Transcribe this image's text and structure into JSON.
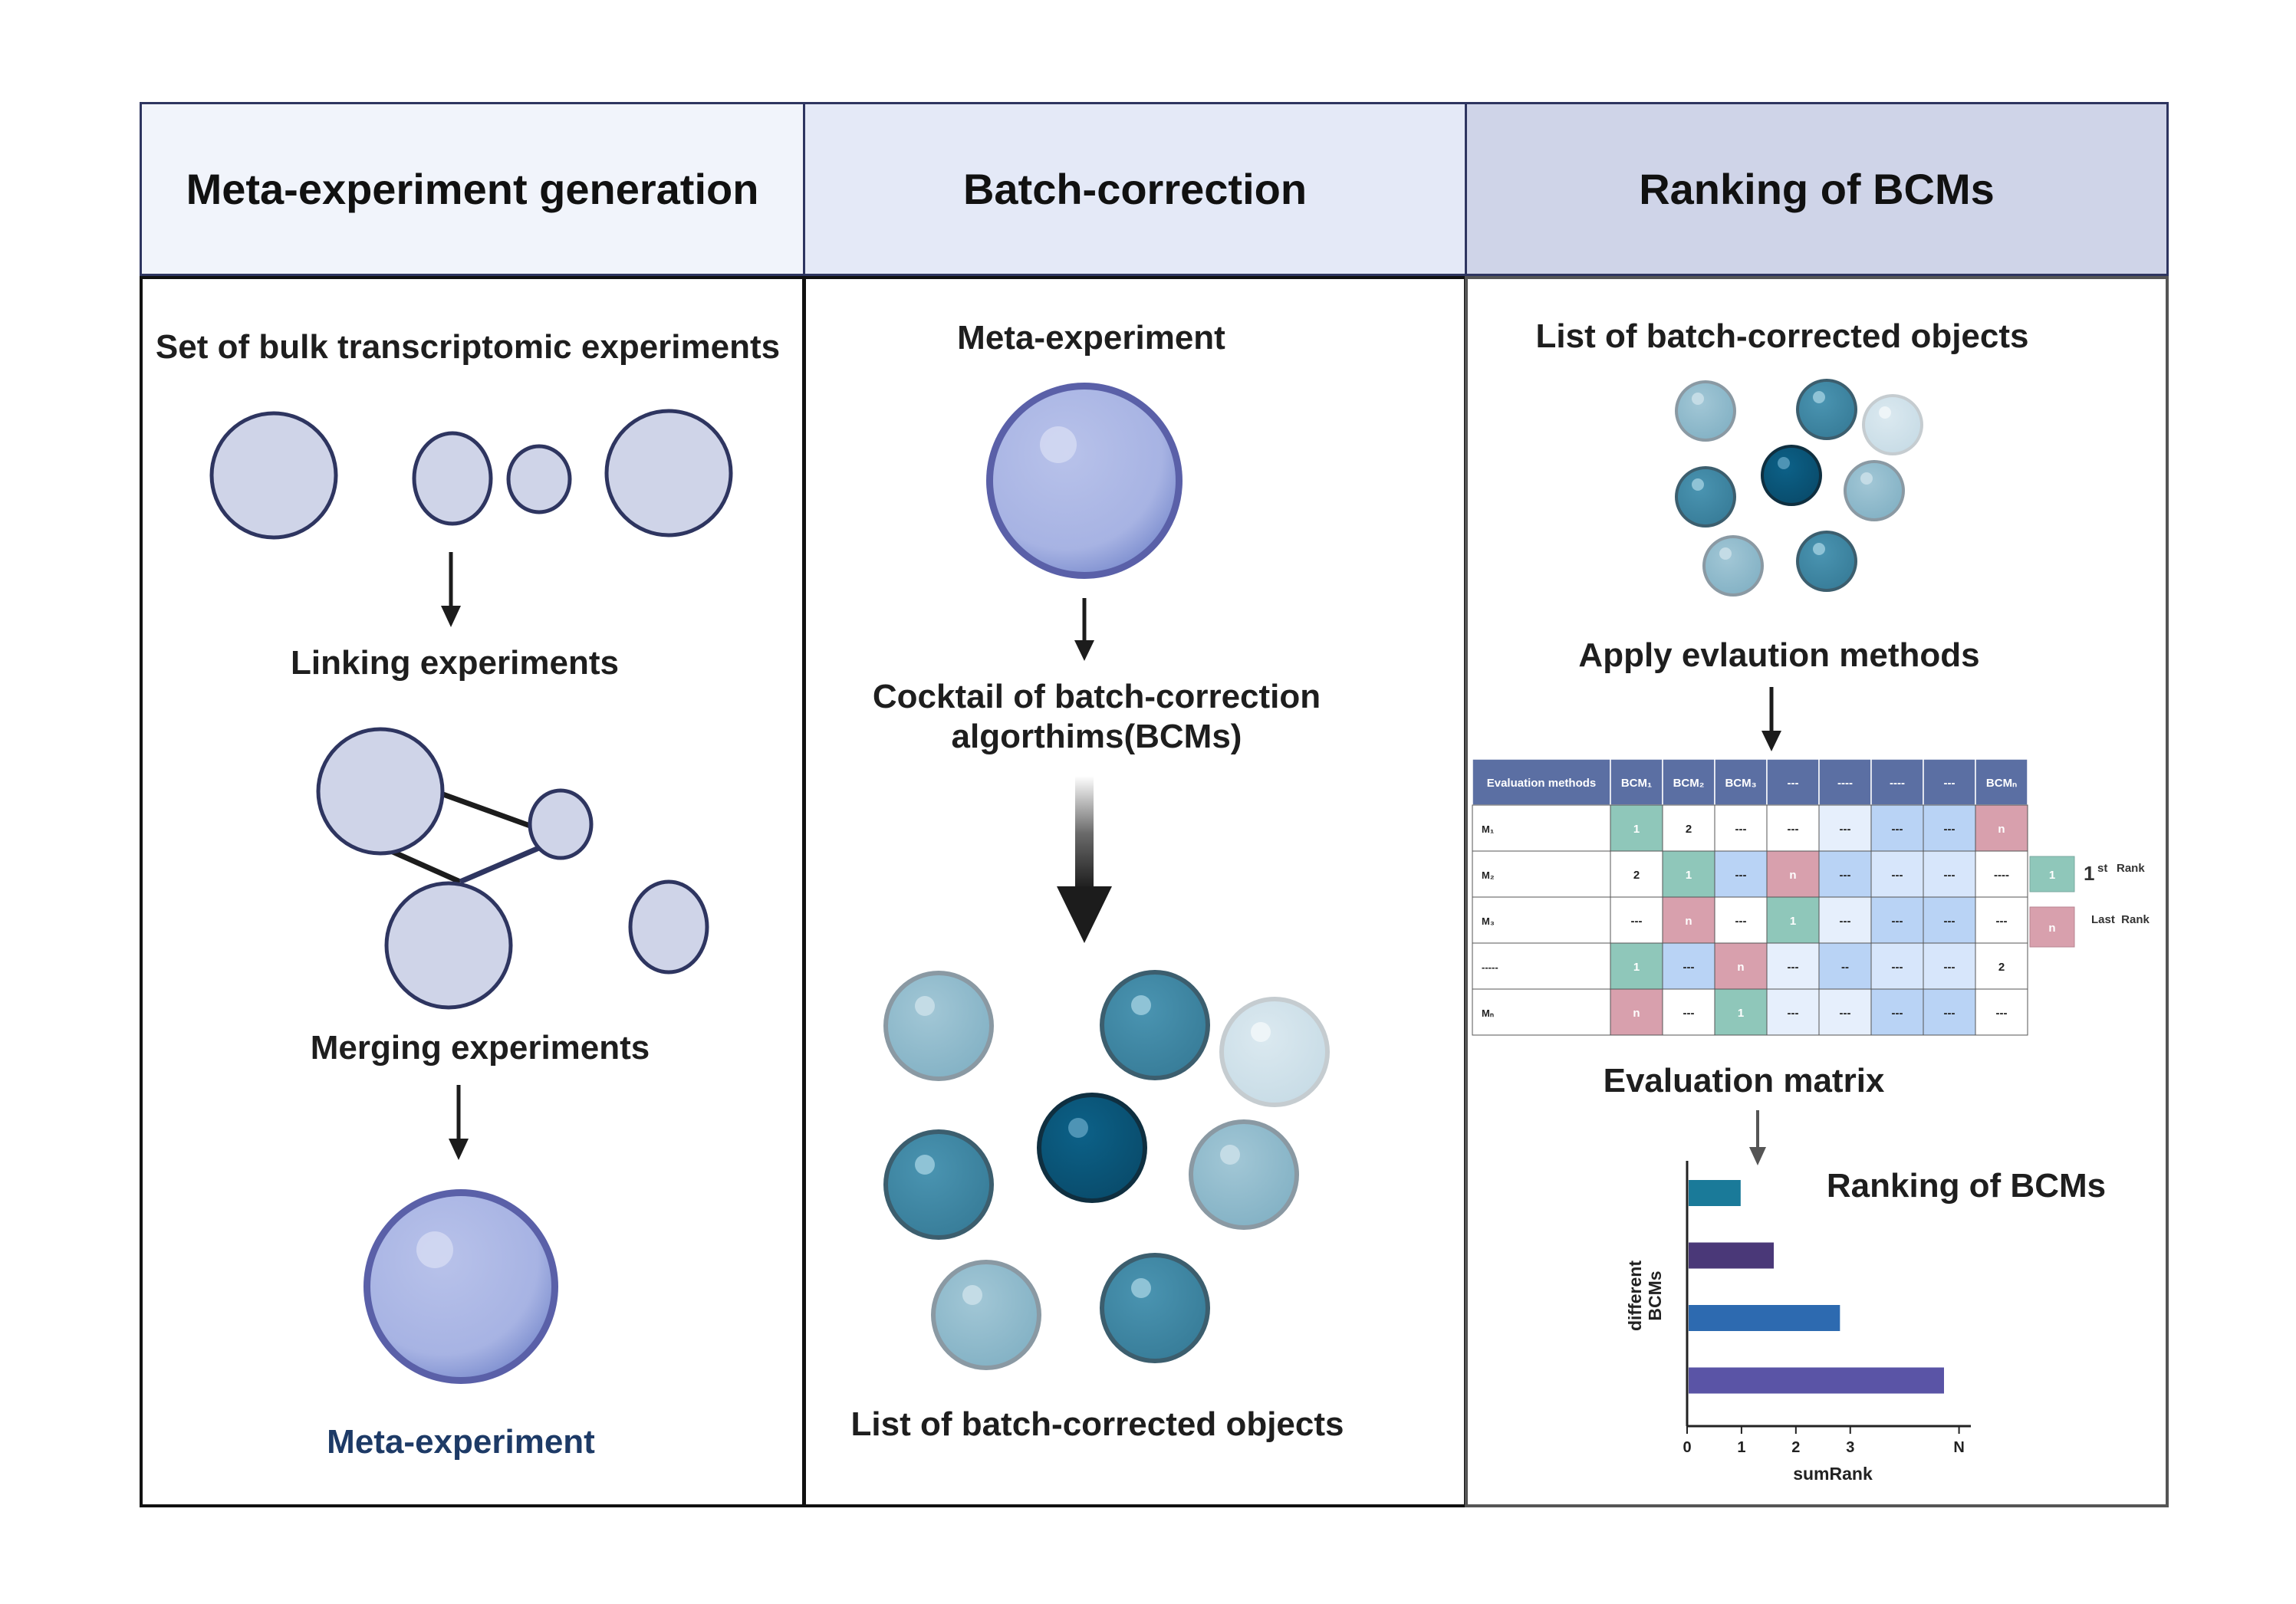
{
  "headers": {
    "col1": "Meta-experiment generation",
    "col2": "Batch-correction",
    "col3": "Ranking of BCMs"
  },
  "col1": {
    "step1": "Set of bulk transcriptomic experiments",
    "step2": "Linking experiments",
    "step3": "Merging experiments",
    "step4": "Meta-experiment"
  },
  "col2": {
    "step1": "Meta-experiment",
    "step2_line1": "Cocktail of batch-correction",
    "step2_line2": "algorthims(BCMs)",
    "step3": "List of batch-corrected objects"
  },
  "col3": {
    "step1": "List of batch-corrected objects",
    "step2": "Apply evlaution methods",
    "step3": "Evaluation matrix",
    "chart_title": "Ranking of BCMs"
  },
  "matrix": {
    "header": [
      "Evaluation methods",
      "BCM₁",
      "BCM₂",
      "BCM₃",
      "---",
      "----",
      "----",
      "---",
      "BCMₙ"
    ],
    "rows": [
      [
        "M₁",
        "1",
        "2",
        "---",
        "---",
        "---",
        "---",
        "---",
        "n"
      ],
      [
        "M₂",
        "2",
        "1",
        "---",
        "n",
        "---",
        "---",
        "---",
        "----"
      ],
      [
        "M₃",
        "---",
        "n",
        "---",
        "1",
        "---",
        "---",
        "---",
        "---"
      ],
      [
        "-----",
        "1",
        "---",
        "n",
        "---",
        "--",
        "---",
        "---",
        "2"
      ],
      [
        "Mₙ",
        "n",
        "---",
        "1",
        "---",
        "---",
        "---",
        "---",
        "---"
      ]
    ],
    "legend_first_num": "1",
    "legend_first_sup": "st",
    "legend_first_word": "Rank",
    "legend_last_word": "Last  Rank",
    "legend_last_cell": "n",
    "legend_first_cell": "1"
  },
  "chart_data": {
    "type": "bar",
    "orientation": "horizontal",
    "title": "Ranking of BCMs",
    "xlabel": "sumRank",
    "ylabel": "different BCMs",
    "x_ticks": [
      "0",
      "1",
      "2",
      "3",
      "N"
    ],
    "series": [
      {
        "values": [
          1.1,
          1.8,
          3.2,
          5.4
        ]
      }
    ],
    "bar_colors": [
      "#1a7a99",
      "#4a3878",
      "#2d6ab0",
      "#5a54a6"
    ],
    "xlim": [
      0,
      6
    ]
  },
  "colors": {
    "header1": "#f1f4fb",
    "header2": "#e4e9f7",
    "header3": "#cfd4e8",
    "bubble_fill": "#cfd4e8",
    "bubble_stroke": "#2e3560",
    "meta_sphere": "#8f9fd8",
    "teal_light": "#8fb9ca",
    "teal_mid": "#3f8aa8",
    "teal_dark": "#0b5a7f",
    "teal_pale": "#d1e3eb",
    "green_cell": "#8fc7ba",
    "pink_cell": "#d8a0ad",
    "blue_cell": "#b9d3f5"
  }
}
